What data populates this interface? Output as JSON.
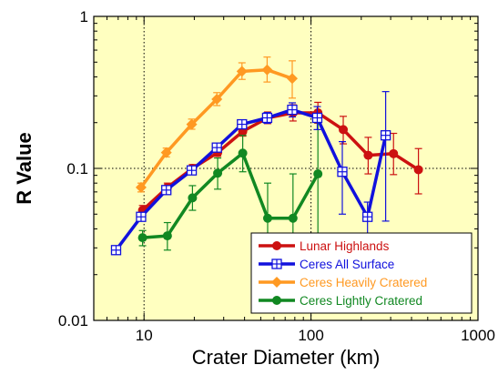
{
  "chart_data": {
    "type": "line",
    "title": "",
    "xlabel": "Crater Diameter (km)",
    "ylabel": "R Value",
    "x_scale": "log",
    "y_scale": "log",
    "xlim": [
      5,
      1000
    ],
    "ylim": [
      0.01,
      1
    ],
    "x_ticks": [
      "10",
      "100",
      "1000"
    ],
    "y_ticks": [
      "1",
      "0.1",
      "0.01"
    ],
    "grid_lines": {
      "x": [
        10,
        100
      ],
      "y": [
        0.1
      ]
    },
    "plot_background": "#ffffc0",
    "legend_position": "bottom-right",
    "series": [
      {
        "name": "Lunar Highlands",
        "color": "#cc1111",
        "marker": "circle",
        "points": [
          {
            "x": 9.8,
            "y": 0.053,
            "lo": 0.049,
            "hi": 0.057
          },
          {
            "x": 13.8,
            "y": 0.075,
            "lo": 0.071,
            "hi": 0.08
          },
          {
            "x": 19.5,
            "y": 0.1,
            "lo": 0.095,
            "hi": 0.106
          },
          {
            "x": 27.6,
            "y": 0.127,
            "lo": 0.12,
            "hi": 0.135
          },
          {
            "x": 39.0,
            "y": 0.175,
            "lo": 0.163,
            "hi": 0.188
          },
          {
            "x": 55.0,
            "y": 0.215,
            "lo": 0.197,
            "hi": 0.235
          },
          {
            "x": 78.0,
            "y": 0.232,
            "lo": 0.205,
            "hi": 0.262
          },
          {
            "x": 110.0,
            "y": 0.232,
            "lo": 0.198,
            "hi": 0.272
          },
          {
            "x": 156.0,
            "y": 0.18,
            "lo": 0.145,
            "hi": 0.22
          },
          {
            "x": 220.0,
            "y": 0.122,
            "lo": 0.092,
            "hi": 0.16
          },
          {
            "x": 312.0,
            "y": 0.125,
            "lo": 0.091,
            "hi": 0.17
          },
          {
            "x": 440.0,
            "y": 0.098,
            "lo": 0.068,
            "hi": 0.135
          }
        ]
      },
      {
        "name": "Ceres All Surface",
        "color": "#1111dd",
        "marker": "square-plus",
        "points": [
          {
            "x": 6.8,
            "y": 0.029,
            "lo": 0.028,
            "hi": 0.03
          },
          {
            "x": 9.6,
            "y": 0.048,
            "lo": 0.046,
            "hi": 0.05
          },
          {
            "x": 13.6,
            "y": 0.072,
            "lo": 0.069,
            "hi": 0.075
          },
          {
            "x": 19.3,
            "y": 0.097,
            "lo": 0.093,
            "hi": 0.102
          },
          {
            "x": 27.3,
            "y": 0.137,
            "lo": 0.13,
            "hi": 0.145
          },
          {
            "x": 38.6,
            "y": 0.195,
            "lo": 0.182,
            "hi": 0.208
          },
          {
            "x": 54.6,
            "y": 0.215,
            "lo": 0.198,
            "hi": 0.233
          },
          {
            "x": 77.2,
            "y": 0.243,
            "lo": 0.218,
            "hi": 0.27
          },
          {
            "x": 109.0,
            "y": 0.215,
            "lo": 0.18,
            "hi": 0.255
          },
          {
            "x": 154.0,
            "y": 0.095,
            "lo": 0.05,
            "hi": 0.15
          },
          {
            "x": 218.0,
            "y": 0.048,
            "lo": 0.034,
            "hi": 0.06
          },
          {
            "x": 280.0,
            "y": 0.165,
            "lo": 0.045,
            "hi": 0.32
          }
        ]
      },
      {
        "name": "Ceres Heavily Cratered",
        "color": "#ff9922",
        "marker": "diamond",
        "points": [
          {
            "x": 9.6,
            "y": 0.075,
            "lo": 0.07,
            "hi": 0.08
          },
          {
            "x": 13.6,
            "y": 0.127,
            "lo": 0.119,
            "hi": 0.136
          },
          {
            "x": 19.3,
            "y": 0.195,
            "lo": 0.181,
            "hi": 0.211
          },
          {
            "x": 27.3,
            "y": 0.285,
            "lo": 0.259,
            "hi": 0.315
          },
          {
            "x": 38.6,
            "y": 0.435,
            "lo": 0.385,
            "hi": 0.495
          },
          {
            "x": 54.6,
            "y": 0.445,
            "lo": 0.37,
            "hi": 0.54
          },
          {
            "x": 77.2,
            "y": 0.39,
            "lo": 0.29,
            "hi": 0.51
          }
        ]
      },
      {
        "name": "Ceres Lightly Cratered",
        "color": "#118822",
        "marker": "circle",
        "points": [
          {
            "x": 9.8,
            "y": 0.035,
            "lo": 0.031,
            "hi": 0.039
          },
          {
            "x": 13.8,
            "y": 0.036,
            "lo": 0.029,
            "hi": 0.044
          },
          {
            "x": 19.5,
            "y": 0.064,
            "lo": 0.053,
            "hi": 0.077
          },
          {
            "x": 27.6,
            "y": 0.093,
            "lo": 0.073,
            "hi": 0.117
          },
          {
            "x": 39.0,
            "y": 0.126,
            "lo": 0.095,
            "hi": 0.165
          },
          {
            "x": 55.0,
            "y": 0.047,
            "lo": 0.025,
            "hi": 0.08
          },
          {
            "x": 78.0,
            "y": 0.047,
            "lo": 0.02,
            "hi": 0.092
          },
          {
            "x": 110.0,
            "y": 0.092,
            "lo": 0.03,
            "hi": 0.2
          }
        ]
      }
    ]
  }
}
